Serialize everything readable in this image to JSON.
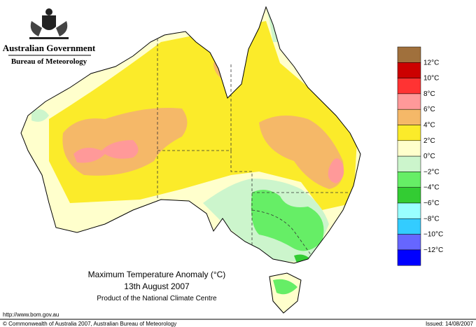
{
  "header": {
    "government": "Australian Government",
    "bureau": "Bureau of Meteorology"
  },
  "legend": {
    "swatches": [
      "#a0703c",
      "#cc0000",
      "#ff3333",
      "#ff9999",
      "#f5b868",
      "#fbeb2a",
      "#ffffcc",
      "#ccf5cc",
      "#66ee66",
      "#33cc33",
      "#99ffff",
      "#33ccff",
      "#6666ff",
      "#0000ff"
    ],
    "labels": [
      "12°C",
      "10°C",
      "8°C",
      "6°C",
      "4°C",
      "2°C",
      "0°C",
      "−2°C",
      "−4°C",
      "−6°C",
      "−8°C",
      "−10°C",
      "−12°C"
    ]
  },
  "title": {
    "line1": "Maximum Temperature Anomaly (°C)",
    "line2": "13th August 2007",
    "line3": "Product of the National Climate Centre"
  },
  "footer": {
    "url": "http://www.bom.gov.au",
    "copyright": "© Commonwealth of Australia 2007, Australian Bureau of Meteorology",
    "issued": "Issued: 14/08/2007"
  }
}
